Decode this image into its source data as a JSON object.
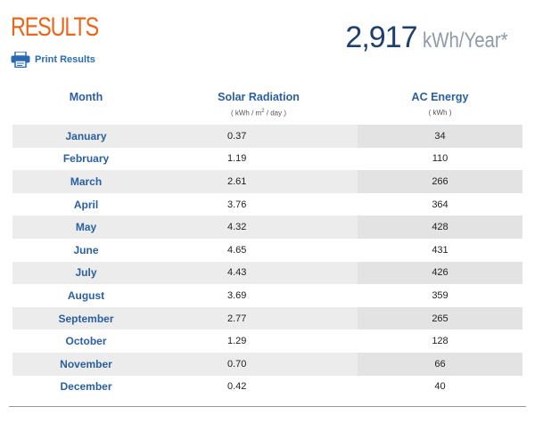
{
  "header": {
    "title": "RESULTS",
    "print_label": "Print Results",
    "total_value": "2,917",
    "total_unit": "kWh/Year*"
  },
  "table": {
    "col_month": "Month",
    "col_solar": "Solar Radiation",
    "col_solar_unit_pre": "( kWh / m",
    "col_solar_unit_sup": "2",
    "col_solar_unit_post": " / day )",
    "col_ac": "AC Energy",
    "col_ac_unit": "( kWh )",
    "rows": [
      {
        "month": "January",
        "solar": "0.37",
        "ac": "34"
      },
      {
        "month": "February",
        "solar": "1.19",
        "ac": "110"
      },
      {
        "month": "March",
        "solar": "2.61",
        "ac": "266"
      },
      {
        "month": "April",
        "solar": "3.76",
        "ac": "364"
      },
      {
        "month": "May",
        "solar": "4.32",
        "ac": "428"
      },
      {
        "month": "June",
        "solar": "4.65",
        "ac": "431"
      },
      {
        "month": "July",
        "solar": "4.43",
        "ac": "426"
      },
      {
        "month": "August",
        "solar": "3.69",
        "ac": "359"
      },
      {
        "month": "September",
        "solar": "2.77",
        "ac": "265"
      },
      {
        "month": "October",
        "solar": "1.29",
        "ac": "128"
      },
      {
        "month": "November",
        "solar": "0.70",
        "ac": "66"
      },
      {
        "month": "December",
        "solar": "0.42",
        "ac": "40"
      }
    ]
  },
  "colors": {
    "title": "#e8671c",
    "link": "#2a6bb0",
    "total": "#1f3f6e",
    "row_stripe": "#ececec"
  },
  "icons": {
    "print": "printer-icon"
  }
}
